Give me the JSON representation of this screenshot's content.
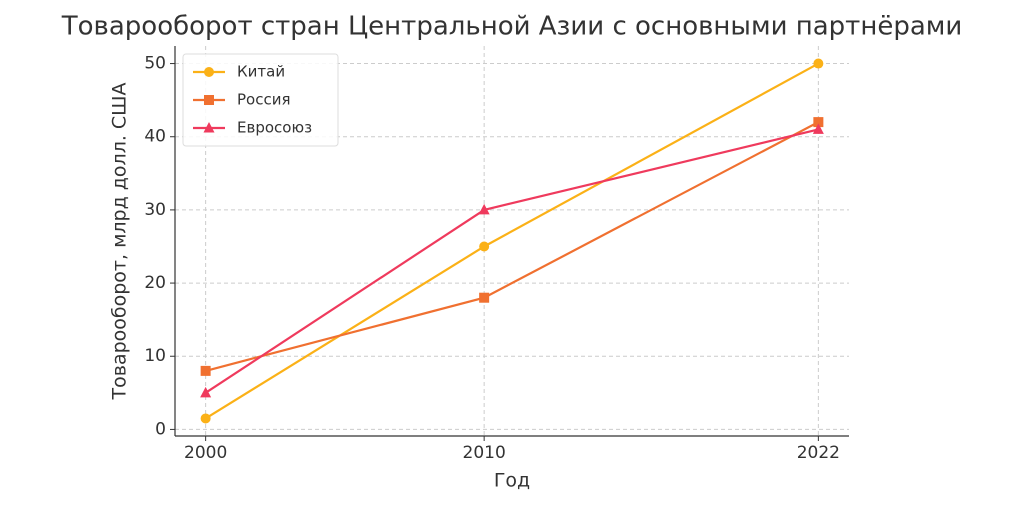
{
  "chart_data": {
    "type": "line",
    "title": "Товарооборот стран Центральной Азии с основными партнёрами",
    "xlabel": "Год",
    "ylabel": "Товарооборот, млрд долл. США",
    "x": [
      2000,
      2010,
      2022
    ],
    "series": [
      {
        "name": "Китай",
        "color": "#fbb117",
        "marker": "circle",
        "values": [
          1.5,
          25,
          50
        ]
      },
      {
        "name": "Россия",
        "color": "#f07030",
        "marker": "square",
        "values": [
          8,
          18,
          42
        ]
      },
      {
        "name": "Евросоюз",
        "color": "#ef3a5d",
        "marker": "triangle",
        "values": [
          5,
          30,
          41
        ]
      }
    ],
    "xlim": [
      1998.9,
      2023.1
    ],
    "xticks": [
      2000,
      2010,
      2022
    ],
    "ylim": [
      -0.9,
      52.4
    ],
    "yticks": [
      0,
      10,
      20,
      30,
      40,
      50
    ],
    "grid": true,
    "legend": "upper-left"
  }
}
